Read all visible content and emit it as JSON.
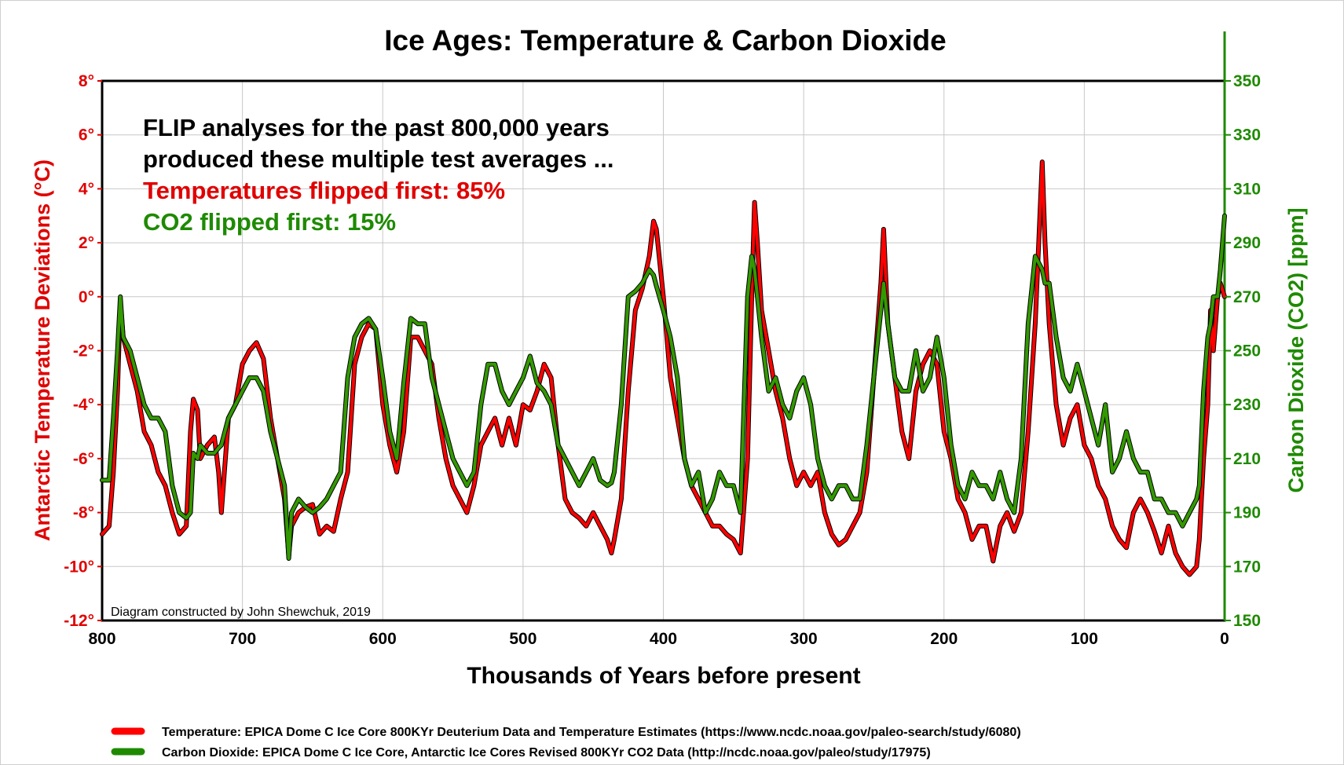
{
  "chart_data": {
    "type": "line",
    "title": "Ice Ages: Temperature & Carbon Dioxide",
    "xlabel": "Thousands of Years before present",
    "ylabel_left": "Antarctic Temperature Deviations  (°C)",
    "ylabel_right": "Carbon Dioxide (CO2) [ppm]",
    "xlim": [
      800,
      0
    ],
    "ylim_left": [
      -12,
      8
    ],
    "ylim_right": [
      150,
      350
    ],
    "x_ticks": [
      "800",
      "700",
      "600",
      "500",
      "400",
      "300",
      "200",
      "100",
      "0"
    ],
    "y_ticks_left": [
      "8°",
      "6°",
      "4°",
      "2°",
      "0°",
      "-2°",
      "-4°",
      "-6°",
      "-8°",
      "-10°",
      "-12°"
    ],
    "y_ticks_right": [
      "350",
      "330",
      "310",
      "290",
      "270",
      "250",
      "230",
      "210",
      "190",
      "170",
      "150"
    ],
    "grid": true,
    "colors": {
      "temperature": "#ff0000",
      "co2": "#339900",
      "annotation": "#000000"
    },
    "annotation_lines": [
      {
        "text": "FLIP analyses for the past 800,000 years",
        "color": "#000000"
      },
      {
        "text": "produced these multiple test averages ...",
        "color": "#000000"
      },
      {
        "text": "Temperatures flipped first: 85%",
        "color": "#e00000"
      },
      {
        "text": "CO2 flipped first: 15%",
        "color": "#1e8a00"
      }
    ],
    "credit": "Diagram constructed by John Shewchuk, 2019",
    "series": [
      {
        "name": "Temperature: EPICA Dome C Ice Core 800KYr Deuterium Data and Temperature Estimates (https://www.ncdc.noaa.gov/paleo-search/study/6080)",
        "axis": "left",
        "x": [
          800,
          795,
          792,
          789,
          787,
          785,
          780,
          775,
          770,
          765,
          760,
          755,
          750,
          745,
          740,
          737,
          735,
          732,
          730,
          725,
          720,
          717,
          715,
          710,
          705,
          700,
          695,
          690,
          685,
          680,
          675,
          670,
          667,
          665,
          660,
          655,
          650,
          645,
          640,
          635,
          630,
          625,
          620,
          615,
          610,
          605,
          600,
          595,
          590,
          585,
          580,
          575,
          570,
          565,
          560,
          555,
          550,
          545,
          540,
          535,
          530,
          525,
          520,
          515,
          510,
          505,
          500,
          495,
          490,
          485,
          480,
          475,
          470,
          465,
          460,
          455,
          450,
          445,
          440,
          437,
          435,
          430,
          425,
          420,
          415,
          410,
          407,
          405,
          400,
          395,
          390,
          385,
          380,
          375,
          370,
          365,
          360,
          355,
          350,
          345,
          340,
          337,
          335,
          333,
          330,
          325,
          320,
          315,
          310,
          305,
          300,
          295,
          290,
          285,
          280,
          275,
          270,
          265,
          260,
          255,
          250,
          245,
          243,
          240,
          235,
          230,
          225,
          220,
          215,
          210,
          205,
          200,
          195,
          190,
          185,
          180,
          175,
          170,
          165,
          160,
          155,
          150,
          145,
          140,
          135,
          130,
          128,
          125,
          120,
          115,
          110,
          105,
          100,
          95,
          90,
          85,
          80,
          75,
          70,
          65,
          60,
          55,
          50,
          45,
          40,
          35,
          30,
          25,
          20,
          18,
          15,
          12,
          10,
          8,
          5,
          3,
          0
        ],
        "values": [
          -8.8,
          -8.5,
          -6.5,
          -3.5,
          -0.2,
          -1.5,
          -2.5,
          -3.5,
          -5.0,
          -5.5,
          -6.5,
          -7.0,
          -8.0,
          -8.8,
          -8.5,
          -5.0,
          -3.8,
          -4.2,
          -6.0,
          -5.5,
          -5.2,
          -6.5,
          -8.0,
          -4.5,
          -4.0,
          -2.5,
          -2.0,
          -1.7,
          -2.3,
          -4.5,
          -6.0,
          -7.5,
          -9.6,
          -8.5,
          -8.0,
          -7.8,
          -7.7,
          -8.8,
          -8.5,
          -8.7,
          -7.5,
          -6.5,
          -2.5,
          -1.5,
          -1.0,
          -1.2,
          -4.0,
          -5.5,
          -6.5,
          -5.0,
          -1.5,
          -1.5,
          -2.0,
          -2.5,
          -4.5,
          -6.0,
          -7.0,
          -7.5,
          -8.0,
          -7.0,
          -5.5,
          -5.0,
          -4.5,
          -5.5,
          -4.5,
          -5.5,
          -4.0,
          -4.2,
          -3.5,
          -2.5,
          -3.0,
          -5.5,
          -7.5,
          -8.0,
          -8.2,
          -8.5,
          -8.0,
          -8.5,
          -9.0,
          -9.5,
          -9.0,
          -7.5,
          -3.5,
          -0.5,
          0.3,
          1.5,
          2.8,
          2.5,
          0.0,
          -3.0,
          -4.5,
          -6.0,
          -7.0,
          -7.5,
          -8.0,
          -8.5,
          -8.5,
          -8.8,
          -9.0,
          -9.5,
          -6.0,
          0.0,
          3.5,
          2.0,
          -0.5,
          -2.0,
          -3.5,
          -4.5,
          -6.0,
          -7.0,
          -6.5,
          -7.0,
          -6.5,
          -8.0,
          -8.8,
          -9.2,
          -9.0,
          -8.5,
          -8.0,
          -6.5,
          -3.0,
          0.5,
          2.5,
          -1.0,
          -3.0,
          -5.0,
          -6.0,
          -3.5,
          -2.5,
          -2.0,
          -2.5,
          -5.0,
          -6.0,
          -7.5,
          -8.0,
          -9.0,
          -8.5,
          -8.5,
          -9.8,
          -8.5,
          -8.0,
          -8.7,
          -8.0,
          -5.0,
          -1.0,
          5.0,
          2.0,
          -1.0,
          -4.0,
          -5.5,
          -4.5,
          -4.0,
          -5.5,
          -6.0,
          -7.0,
          -7.5,
          -8.5,
          -9.0,
          -9.3,
          -8.0,
          -7.5,
          -8.0,
          -8.7,
          -9.5,
          -8.5,
          -9.5,
          -10.0,
          -10.3,
          -10.0,
          -9.0,
          -6.0,
          -4.0,
          -0.5,
          -2.0,
          0.0,
          0.5,
          0.0
        ]
      },
      {
        "name": "Carbon Dioxide: EPICA Dome C Ice Core,  Antarctic Ice Cores Revised 800KYr CO2 Data (http://ncdc.noaa.gov/paleo/study/17975)",
        "axis": "right",
        "x": [
          800,
          795,
          792,
          789,
          787,
          785,
          780,
          775,
          770,
          765,
          760,
          755,
          750,
          745,
          740,
          737,
          735,
          732,
          730,
          725,
          720,
          717,
          715,
          710,
          705,
          700,
          695,
          690,
          685,
          680,
          675,
          670,
          667,
          665,
          660,
          655,
          650,
          645,
          640,
          635,
          630,
          625,
          620,
          615,
          610,
          605,
          600,
          595,
          590,
          585,
          580,
          575,
          570,
          565,
          560,
          555,
          550,
          545,
          540,
          535,
          530,
          525,
          520,
          515,
          510,
          505,
          500,
          495,
          490,
          485,
          480,
          475,
          470,
          465,
          460,
          455,
          450,
          445,
          440,
          437,
          435,
          430,
          425,
          420,
          415,
          410,
          407,
          405,
          400,
          395,
          390,
          385,
          380,
          375,
          370,
          365,
          360,
          355,
          350,
          345,
          340,
          337,
          335,
          333,
          330,
          325,
          320,
          315,
          310,
          305,
          300,
          295,
          290,
          285,
          280,
          275,
          270,
          265,
          260,
          255,
          250,
          245,
          243,
          240,
          235,
          230,
          225,
          220,
          215,
          210,
          205,
          200,
          195,
          190,
          185,
          180,
          175,
          170,
          165,
          160,
          155,
          150,
          145,
          140,
          135,
          130,
          128,
          125,
          120,
          115,
          110,
          105,
          100,
          95,
          90,
          85,
          80,
          75,
          70,
          65,
          60,
          55,
          50,
          45,
          40,
          35,
          30,
          25,
          20,
          18,
          15,
          12,
          10,
          8,
          5,
          3,
          0
        ],
        "values": [
          202,
          202,
          225,
          250,
          270,
          255,
          250,
          240,
          230,
          225,
          225,
          220,
          200,
          190,
          188,
          190,
          212,
          210,
          215,
          212,
          212,
          214,
          215,
          225,
          230,
          235,
          240,
          240,
          235,
          220,
          210,
          200,
          173,
          190,
          195,
          192,
          190,
          192,
          195,
          200,
          205,
          240,
          255,
          260,
          262,
          258,
          240,
          220,
          210,
          238,
          262,
          260,
          260,
          240,
          230,
          220,
          210,
          205,
          200,
          205,
          230,
          245,
          245,
          235,
          230,
          235,
          240,
          248,
          238,
          235,
          230,
          215,
          210,
          205,
          200,
          205,
          210,
          202,
          200,
          201,
          205,
          230,
          270,
          272,
          275,
          280,
          278,
          274,
          265,
          255,
          240,
          210,
          200,
          205,
          190,
          195,
          205,
          200,
          200,
          190,
          270,
          285,
          280,
          270,
          255,
          235,
          240,
          230,
          225,
          235,
          240,
          230,
          210,
          200,
          195,
          200,
          200,
          195,
          195,
          215,
          240,
          265,
          275,
          260,
          240,
          235,
          235,
          250,
          235,
          240,
          255,
          240,
          215,
          200,
          195,
          205,
          200,
          200,
          195,
          205,
          195,
          190,
          210,
          260,
          285,
          280,
          275,
          275,
          255,
          240,
          235,
          245,
          235,
          225,
          215,
          230,
          205,
          210,
          220,
          210,
          205,
          205,
          195,
          195,
          190,
          190,
          185,
          190,
          195,
          200,
          235,
          255,
          260,
          270,
          270,
          280,
          300
        ]
      }
    ]
  }
}
